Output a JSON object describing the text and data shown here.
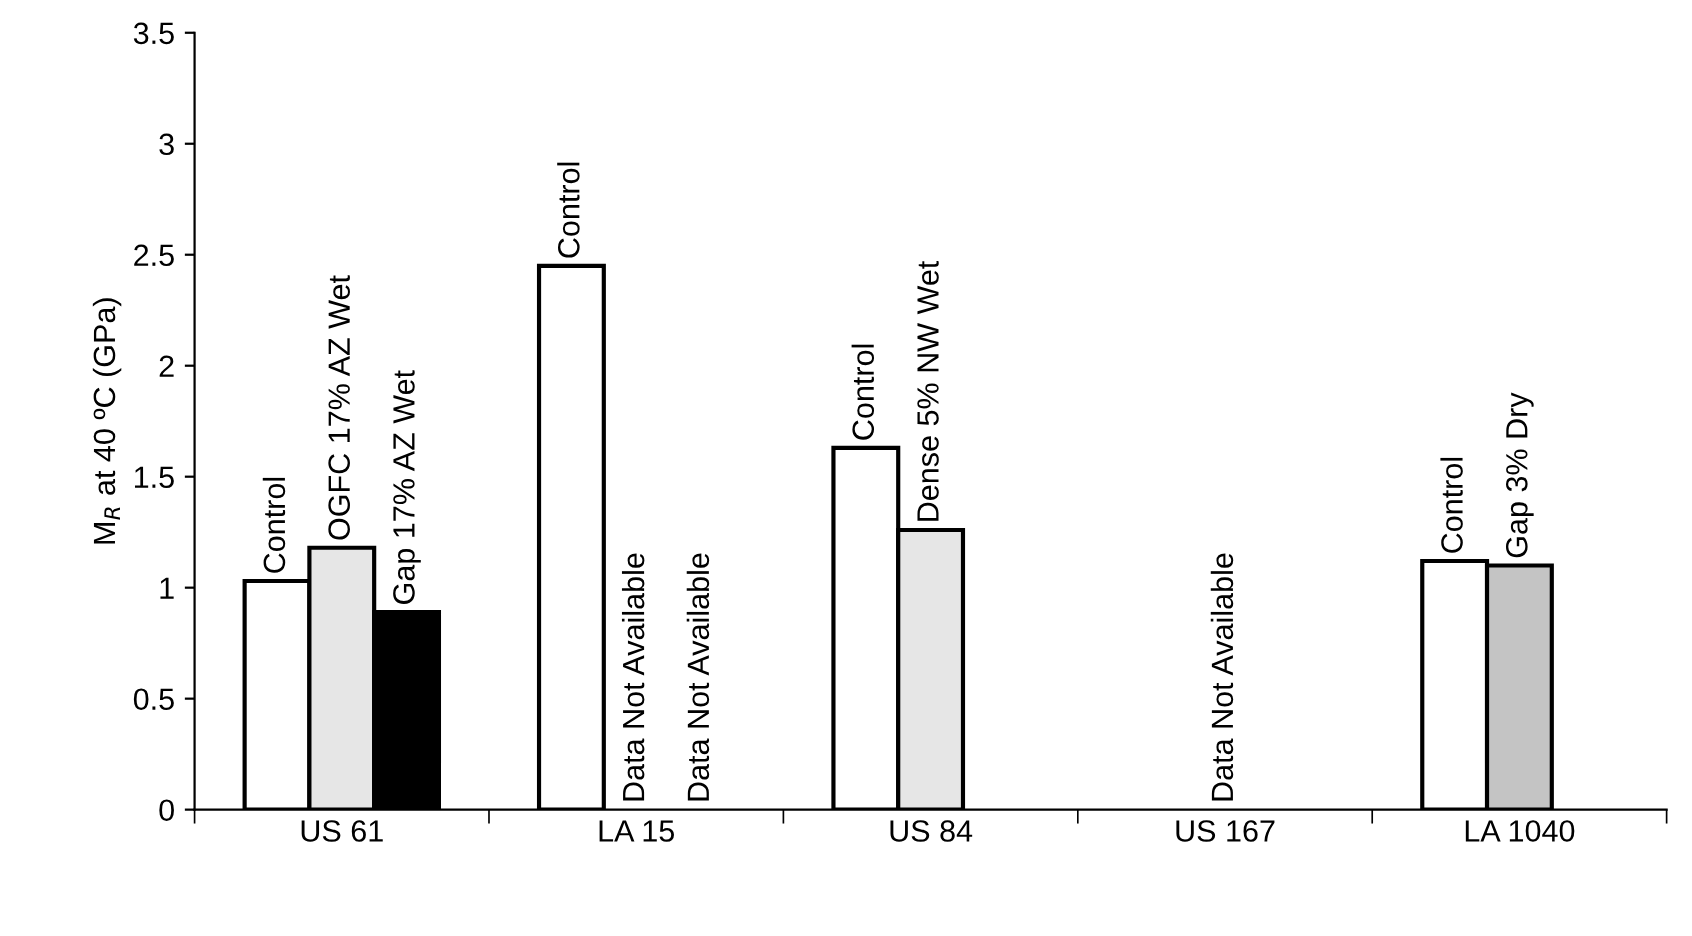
{
  "chart_data": {
    "type": "bar",
    "ylabel": "M$_{R}$ at 40 ºC (GPa)",
    "categories": [
      "US 61",
      "LA 15",
      "US 84",
      "US 167",
      "LA 1040"
    ],
    "series": [
      {
        "color": "#ffffff",
        "values": [
          1.03,
          2.45,
          1.63,
          null,
          1.12
        ],
        "value_labels": [
          "Control",
          "Control",
          "Control",
          null,
          "Control"
        ]
      },
      {
        "colors": [
          "#e6e6e6",
          null,
          "#e6e6e6",
          null,
          "#c4c4c4"
        ],
        "values": [
          1.18,
          null,
          1.26,
          null,
          1.1
        ],
        "value_labels": [
          "OGFC 17% AZ Wet",
          "Data Not Available",
          "Dense 5% NW Wet",
          "Data Not Available",
          "Gap 3% Dry"
        ]
      },
      {
        "color": "#000000",
        "values": [
          0.89,
          null,
          null,
          null,
          null
        ],
        "value_labels": [
          "Gap 17% AZ Wet",
          "Data Not Available",
          null,
          null,
          null
        ]
      }
    ],
    "ylim": [
      0,
      3.5
    ],
    "yticks": [
      0,
      0.5,
      1,
      1.5,
      2,
      2.5,
      3,
      3.5
    ],
    "grid": false,
    "legend": false
  }
}
